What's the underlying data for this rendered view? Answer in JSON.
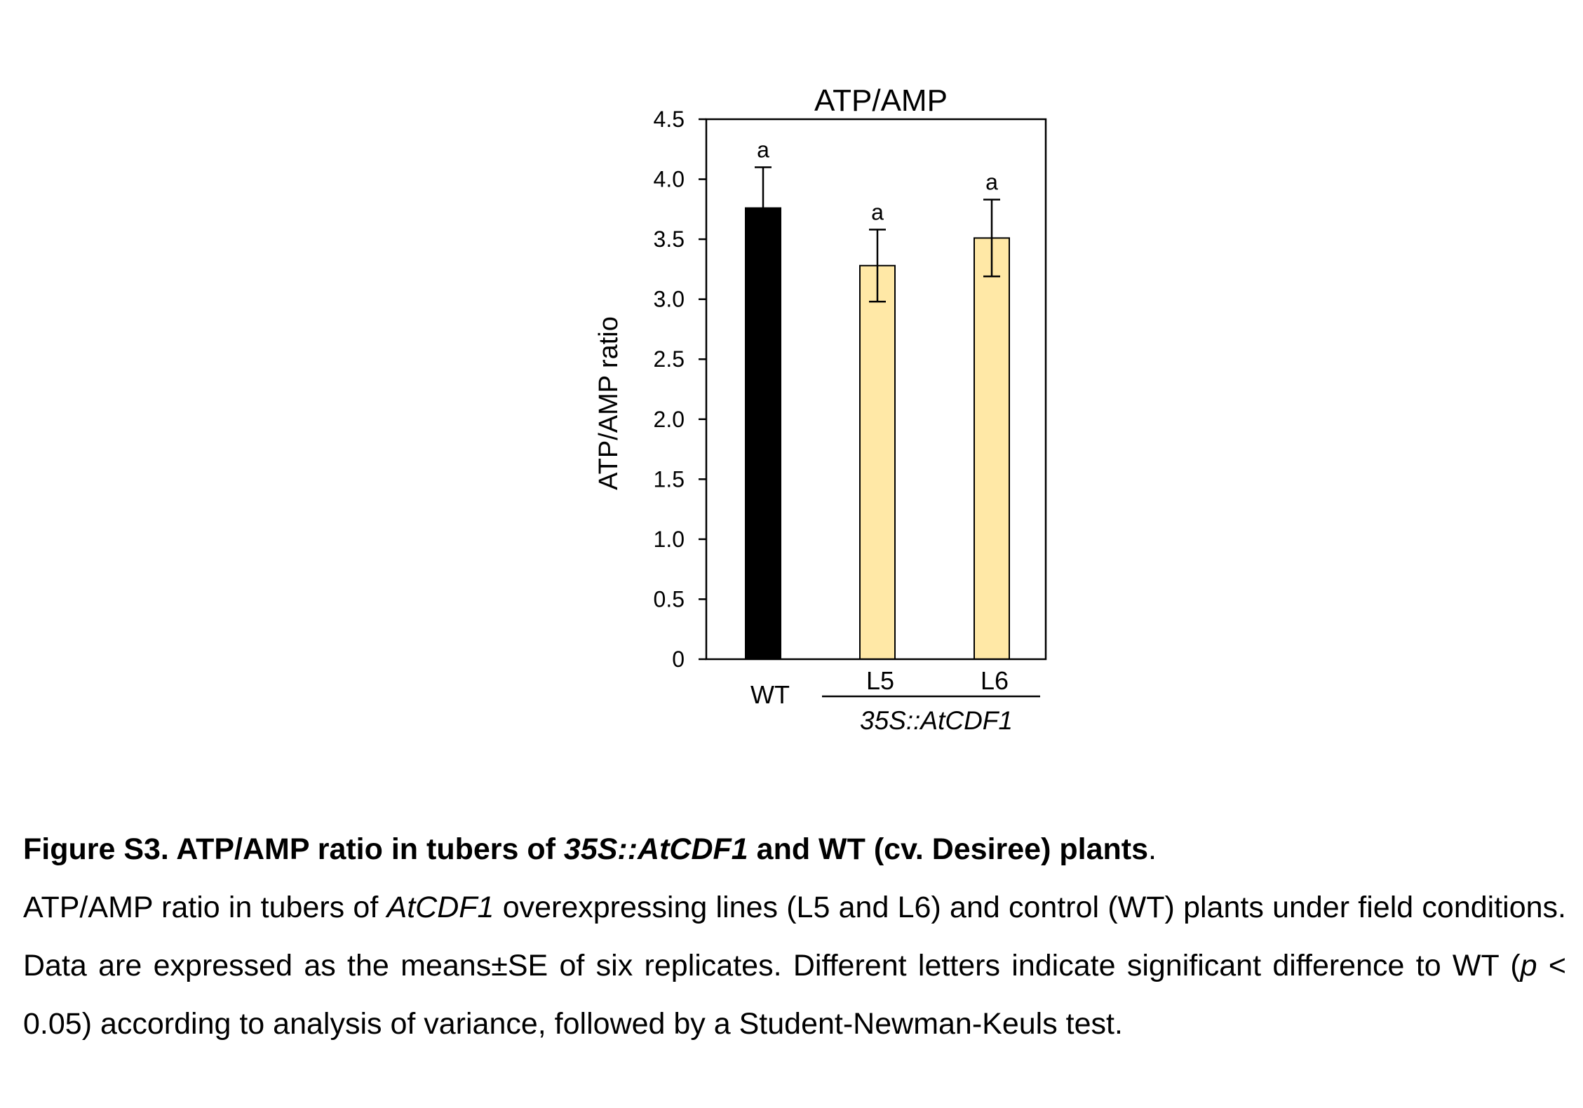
{
  "chart_data": {
    "type": "bar",
    "title": "ATP/AMP",
    "ylabel": "ATP/AMP ratio",
    "xlabel": "",
    "ylim": [
      0,
      4.5
    ],
    "yticks": [
      0,
      0.5,
      1.0,
      1.5,
      2.0,
      2.5,
      3.0,
      3.5,
      4.0,
      4.5
    ],
    "ytick_labels": [
      "0",
      "0.5",
      "1.0",
      "1.5",
      "2.0",
      "2.5",
      "3.0",
      "3.5",
      "4.0",
      "4.5"
    ],
    "categories": [
      "WT",
      "L5",
      "L6"
    ],
    "values": [
      3.76,
      3.28,
      3.51
    ],
    "errors": [
      0.34,
      0.3,
      0.32
    ],
    "significance_letters": [
      "a",
      "a",
      "a"
    ],
    "bar_colors": [
      "#000000",
      "#FFE8A6",
      "#FFE8A6"
    ],
    "group_label": "35S::AtCDF1",
    "group_categories": [
      "L5",
      "L6"
    ],
    "grid": false,
    "legend": "none"
  },
  "caption": {
    "title_prefix": "Figure S3. ATP/AMP ratio in tubers of ",
    "title_italic": "35S::AtCDF1",
    "title_suffix": " and WT  (cv. Desiree) plants",
    "title_period": ".",
    "body_part1": "ATP/AMP ratio in tubers of ",
    "body_italic1": "AtCDF1",
    "body_part2": " overexpressing lines (L5 and L6) and control (WT) plants under field conditions. Data are expressed as the means±SE of six replicates. Different letters indicate significant difference to WT (",
    "body_italic2": "p",
    "body_part3": " < 0.05) according to analysis of variance, followed by a Student-Newman-Keuls test."
  }
}
